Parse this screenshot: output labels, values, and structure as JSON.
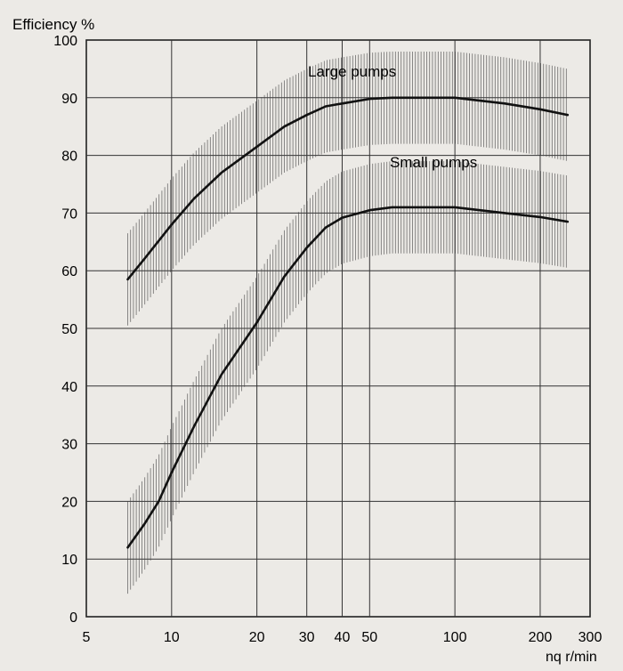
{
  "chart_data": {
    "type": "line",
    "title": "",
    "ylabel": "Efficiency %",
    "xlabel": "nq r/min",
    "x_scale": "log",
    "xlim": [
      5,
      300
    ],
    "ylim": [
      0,
      100
    ],
    "x_ticks": [
      5,
      10,
      20,
      30,
      40,
      50,
      100,
      200,
      300
    ],
    "x_tick_labels": [
      "5",
      "10",
      "20",
      "30",
      "40",
      "50",
      "100",
      "200",
      "300"
    ],
    "y_ticks": [
      0,
      10,
      20,
      30,
      40,
      50,
      60,
      70,
      80,
      90,
      100
    ],
    "y_tick_labels": [
      "0",
      "10",
      "20",
      "30",
      "40",
      "50",
      "60",
      "70",
      "80",
      "90",
      "100"
    ],
    "grid": true,
    "series": [
      {
        "name": "Large pumps",
        "x": [
          7,
          8,
          10,
          12,
          15,
          20,
          25,
          30,
          35,
          40,
          50,
          60,
          80,
          100,
          150,
          200,
          250
        ],
        "y": [
          58.5,
          62,
          68,
          72.5,
          77,
          81.5,
          85,
          87,
          88.5,
          89,
          89.8,
          90,
          90,
          90,
          89,
          88,
          87
        ],
        "band": 8
      },
      {
        "name": "Small pumps",
        "x": [
          7,
          8,
          9,
          10,
          12,
          15,
          20,
          25,
          30,
          35,
          40,
          50,
          60,
          80,
          100,
          150,
          200,
          250
        ],
        "y": [
          12,
          16,
          20,
          25,
          33,
          42,
          51,
          59,
          64,
          67.5,
          69.2,
          70.5,
          71,
          71,
          71,
          70,
          69.3,
          68.5
        ],
        "band": 8
      }
    ]
  }
}
